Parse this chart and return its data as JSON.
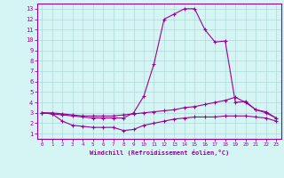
{
  "xlabel": "Windchill (Refroidissement éolien,°C)",
  "x": [
    0,
    1,
    2,
    3,
    4,
    5,
    6,
    7,
    8,
    9,
    10,
    11,
    12,
    13,
    14,
    15,
    16,
    17,
    18,
    19,
    20,
    21,
    22,
    23
  ],
  "line1": [
    3.0,
    2.9,
    2.8,
    2.7,
    2.6,
    2.5,
    2.5,
    2.5,
    2.5,
    3.0,
    4.6,
    7.7,
    12.0,
    12.5,
    13.0,
    13.0,
    11.0,
    9.8,
    9.9,
    4.0,
    4.1,
    3.3,
    3.0,
    2.5
  ],
  "line2": [
    3.0,
    3.0,
    2.9,
    2.8,
    2.7,
    2.7,
    2.7,
    2.7,
    2.8,
    2.9,
    3.0,
    3.1,
    3.2,
    3.3,
    3.5,
    3.6,
    3.8,
    4.0,
    4.2,
    4.5,
    4.0,
    3.3,
    3.1,
    2.5
  ],
  "line3": [
    3.0,
    2.9,
    2.2,
    1.8,
    1.7,
    1.6,
    1.6,
    1.6,
    1.3,
    1.4,
    1.8,
    2.0,
    2.2,
    2.4,
    2.5,
    2.6,
    2.6,
    2.6,
    2.7,
    2.7,
    2.7,
    2.6,
    2.5,
    2.2
  ],
  "line_color": "#990099",
  "bg_color": "#d5f5f5",
  "grid_color": "#b0d8d8",
  "ylim": [
    0.5,
    13.5
  ],
  "xlim": [
    -0.5,
    23.5
  ],
  "yticks": [
    1,
    2,
    3,
    4,
    5,
    6,
    7,
    8,
    9,
    10,
    11,
    12,
    13
  ],
  "xticks": [
    0,
    1,
    2,
    3,
    4,
    5,
    6,
    7,
    8,
    9,
    10,
    11,
    12,
    13,
    14,
    15,
    16,
    17,
    18,
    19,
    20,
    21,
    22,
    23
  ]
}
